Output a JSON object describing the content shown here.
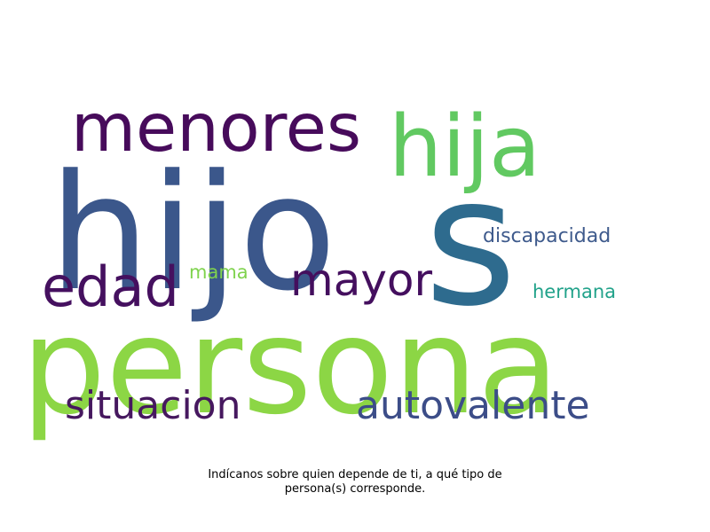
{
  "words": [
    {
      "key": "hijos_hijo",
      "text": "hijo",
      "color": "#3b578b"
    },
    {
      "key": "hijos_s",
      "text": "s",
      "color": "#2e6b8e"
    },
    {
      "key": "persona",
      "text": "persona",
      "color": "#8cd645"
    },
    {
      "key": "menores",
      "text": "menores",
      "color": "#470b5b"
    },
    {
      "key": "hija",
      "text": "hija",
      "color": "#61c961"
    },
    {
      "key": "edad",
      "text": "edad",
      "color": "#45105f"
    },
    {
      "key": "mayor",
      "text": "mayor",
      "color": "#440f5e"
    },
    {
      "key": "mama",
      "text": "mama",
      "color": "#7fd34e"
    },
    {
      "key": "discapacidad",
      "text": "discapacidad",
      "color": "#3e5a8c"
    },
    {
      "key": "hermana",
      "text": "hermana",
      "color": "#21a28a"
    },
    {
      "key": "situacion",
      "text": "situacion",
      "color": "#46185f"
    },
    {
      "key": "autovalente",
      "text": "autovalente",
      "color": "#3c4d88"
    }
  ],
  "caption": {
    "line1": "Indícanos sobre quien depende de ti, a qué tipo de",
    "line2": "persona(s) corresponde."
  }
}
